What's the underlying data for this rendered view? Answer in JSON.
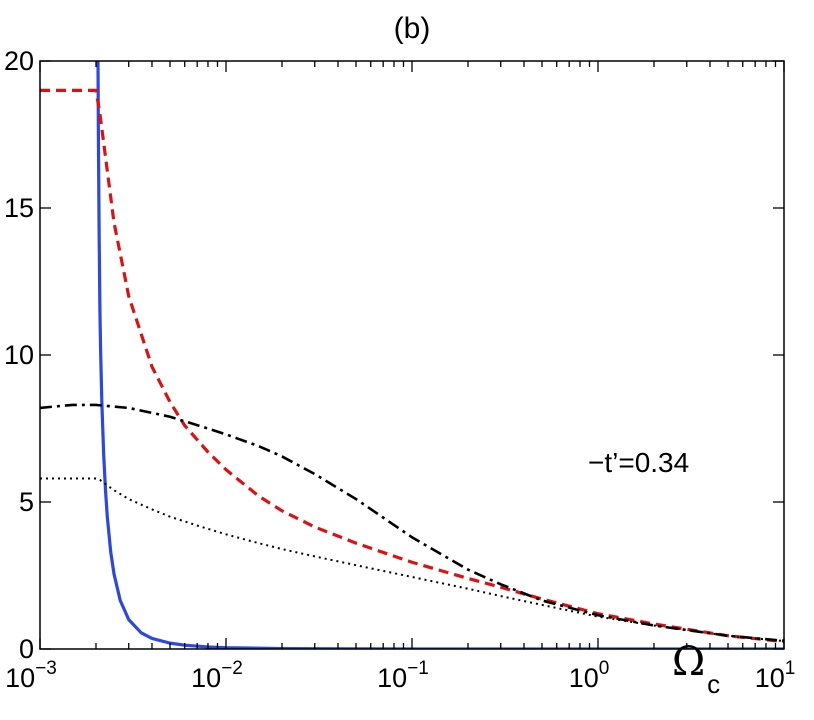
{
  "chart_data": {
    "type": "line",
    "title": "(b)",
    "xlabel": "Ω",
    "xlabel_subscript": "c",
    "ylabel": "",
    "xscale": "log",
    "xlim": [
      0.001,
      10
    ],
    "ylim": [
      0,
      20
    ],
    "x_ticks": [
      {
        "value": 0.001,
        "base": "10",
        "exp": "−3"
      },
      {
        "value": 0.01,
        "base": "10",
        "exp": "−2"
      },
      {
        "value": 0.1,
        "base": "10",
        "exp": "−1"
      },
      {
        "value": 1,
        "base": "10",
        "exp": "0"
      },
      {
        "value": 10,
        "base": "10",
        "exp": "1"
      }
    ],
    "y_ticks": [
      {
        "value": 0,
        "label": "0"
      },
      {
        "value": 5,
        "label": "5"
      },
      {
        "value": 10,
        "label": "10"
      },
      {
        "value": 15,
        "label": "15"
      },
      {
        "value": 20,
        "label": "20"
      }
    ],
    "grid": false,
    "annotation": "−t’=0.34",
    "series": [
      {
        "style": "solid",
        "color": "#2b47e6",
        "x": [
          0.00205,
          0.00206,
          0.00208,
          0.0021,
          0.00212,
          0.00215,
          0.0022,
          0.00225,
          0.0023,
          0.0024,
          0.0025,
          0.0027,
          0.003,
          0.0035,
          0.004,
          0.005,
          0.006,
          0.008,
          0.01,
          0.02,
          0.05,
          0.1,
          1,
          10
        ],
        "y": [
          20,
          17.5,
          14,
          11.5,
          10,
          8.4,
          6.6,
          5.4,
          4.5,
          3.3,
          2.55,
          1.65,
          1.0,
          0.55,
          0.36,
          0.2,
          0.13,
          0.07,
          0.045,
          0.015,
          0.005,
          0.002,
          0.001,
          0.001
        ]
      },
      {
        "style": "dashed",
        "color": "#e01010",
        "x": [
          0.001,
          0.0015,
          0.002,
          0.0021,
          0.0025,
          0.003,
          0.004,
          0.005,
          0.006,
          0.008,
          0.01,
          0.015,
          0.02,
          0.03,
          0.05,
          0.1,
          0.2,
          0.3,
          0.5,
          1,
          2,
          5,
          10
        ],
        "y": [
          19,
          19,
          19,
          18.2,
          14.5,
          12,
          9.6,
          8.4,
          7.6,
          6.7,
          6.1,
          5.2,
          4.7,
          4.15,
          3.6,
          2.95,
          2.4,
          2.1,
          1.7,
          1.2,
          0.85,
          0.45,
          0.25
        ]
      },
      {
        "style": "dashdot",
        "color": "#000000",
        "x": [
          0.001,
          0.0013,
          0.0015,
          0.002,
          0.003,
          0.005,
          0.008,
          0.01,
          0.015,
          0.02,
          0.03,
          0.05,
          0.1,
          0.2,
          0.3,
          0.5,
          1,
          2,
          5,
          10
        ],
        "y": [
          8.2,
          8.27,
          8.3,
          8.3,
          8.2,
          7.9,
          7.5,
          7.3,
          6.9,
          6.55,
          5.95,
          5.1,
          3.8,
          2.7,
          2.2,
          1.65,
          1.15,
          0.8,
          0.45,
          0.28
        ]
      },
      {
        "style": "dotted",
        "color": "#000000",
        "x": [
          0.001,
          0.002,
          0.0021,
          0.0025,
          0.003,
          0.004,
          0.005,
          0.007,
          0.01,
          0.015,
          0.02,
          0.03,
          0.05,
          0.1,
          0.2,
          0.3,
          0.5,
          1,
          2,
          5,
          10
        ],
        "y": [
          5.8,
          5.8,
          5.75,
          5.4,
          5.1,
          4.75,
          4.5,
          4.2,
          3.9,
          3.6,
          3.4,
          3.15,
          2.85,
          2.45,
          2.05,
          1.8,
          1.5,
          1.1,
          0.8,
          0.45,
          0.27
        ]
      }
    ]
  }
}
